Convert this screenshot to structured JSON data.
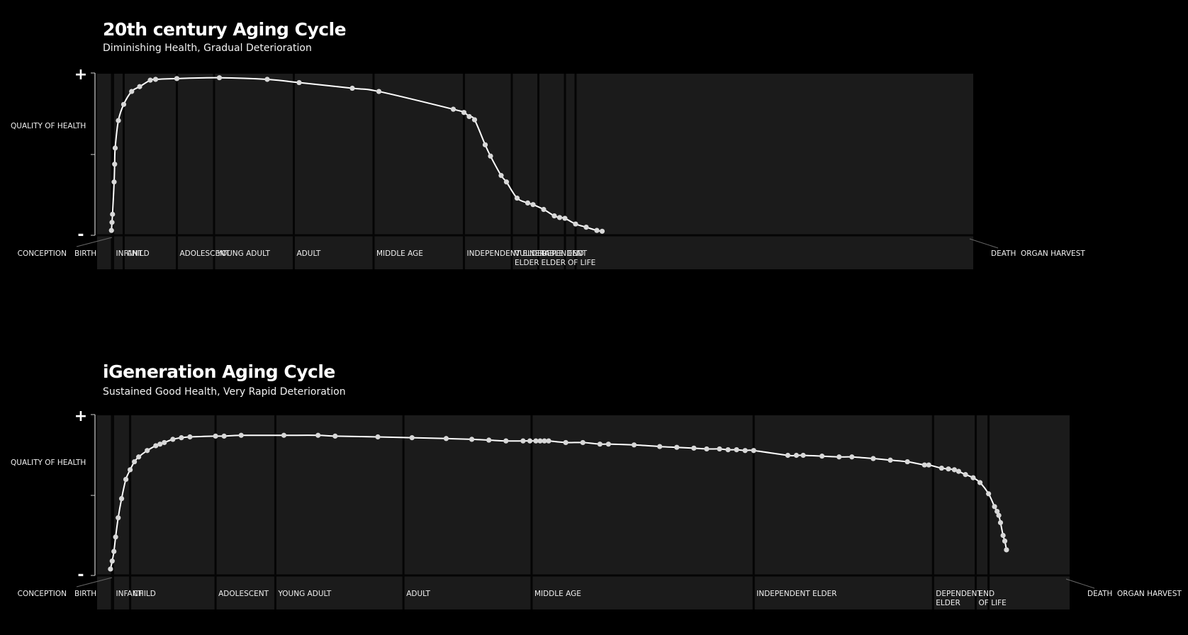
{
  "colors": {
    "background": "#000000",
    "panel": "#1b1b1b",
    "divider": "#050505",
    "curve": "#ffffff",
    "point": "#d8d8d8"
  },
  "chart_data": [
    {
      "type": "line",
      "title": "20th century Aging Cycle",
      "subtitle": "Diminishing Health, Gradual Deterioration",
      "ylabel": "QUALITY OF HEALTH",
      "y_max_label": "+",
      "y_min_label": "-",
      "ylim": [
        0,
        100
      ],
      "left_labels": [
        "CONCEPTION",
        "BIRTH"
      ],
      "right_labels": [
        "DEATH",
        "ORGAN HARVEST"
      ],
      "stages": [
        {
          "label": "INFANT",
          "label2": "",
          "start": 0,
          "end": 2
        },
        {
          "label": "CHILD",
          "label2": "",
          "start": 2,
          "end": 12
        },
        {
          "label": "ADOLESCENT",
          "label2": "",
          "start": 12,
          "end": 19
        },
        {
          "label": "YOUNG ADULT",
          "label2": "",
          "start": 19,
          "end": 34
        },
        {
          "label": "ADULT",
          "label2": "",
          "start": 34,
          "end": 49
        },
        {
          "label": "MIDDLE AGE",
          "label2": "",
          "start": 49,
          "end": 66
        },
        {
          "label": "INDEPENDENT ELDER",
          "label2": "",
          "start": 66,
          "end": 75
        },
        {
          "label": "VULNERABLE",
          "label2": "ELDER",
          "start": 75,
          "end": 80
        },
        {
          "label": "DEPENDENT",
          "label2": "ELDER",
          "start": 80,
          "end": 85
        },
        {
          "label": "END",
          "label2": "OF LIFE",
          "start": 85,
          "end": 87
        }
      ],
      "points": [
        [
          -0.3,
          3
        ],
        [
          -0.2,
          8
        ],
        [
          -0.1,
          13
        ],
        [
          0.2,
          33
        ],
        [
          0.3,
          44
        ],
        [
          0.4,
          54
        ],
        [
          1,
          71
        ],
        [
          2,
          81
        ],
        [
          3.5,
          89
        ],
        [
          5,
          92
        ],
        [
          7,
          96
        ],
        [
          8,
          96.5
        ],
        [
          12,
          97
        ],
        [
          20,
          97.5
        ],
        [
          29,
          96.5
        ],
        [
          35,
          94.5
        ],
        [
          45,
          91
        ],
        [
          50,
          89
        ],
        [
          64,
          78
        ],
        [
          66,
          76
        ],
        [
          67,
          73.5
        ],
        [
          68,
          71.5
        ],
        [
          70,
          56
        ],
        [
          71,
          49
        ],
        [
          73,
          37
        ],
        [
          74,
          33
        ],
        [
          76,
          23
        ],
        [
          78,
          20
        ],
        [
          79,
          19
        ],
        [
          81,
          16
        ],
        [
          83,
          12
        ],
        [
          84,
          11
        ],
        [
          85,
          10.5
        ],
        [
          87,
          7
        ],
        [
          89,
          5
        ],
        [
          91,
          3
        ],
        [
          92,
          2.5
        ]
      ]
    },
    {
      "type": "line",
      "title": "iGeneration Aging Cycle",
      "subtitle": "Sustained Good Health, Very Rapid Deterioration",
      "ylabel": "QUALITY OF HEALTH",
      "y_max_label": "+",
      "y_min_label": "-",
      "ylim": [
        0,
        100
      ],
      "left_labels": [
        "CONCEPTION",
        "BIRTH"
      ],
      "right_labels": [
        "DEATH",
        "ORGAN HARVEST"
      ],
      "stages": [
        {
          "label": "INFANT",
          "label2": "",
          "start": 0,
          "end": 2
        },
        {
          "label": "CHILD",
          "label2": "",
          "start": 2,
          "end": 12
        },
        {
          "label": "ADOLESCENT",
          "label2": "",
          "start": 12,
          "end": 19
        },
        {
          "label": "YOUNG ADULT",
          "label2": "",
          "start": 19,
          "end": 34
        },
        {
          "label": "ADULT",
          "label2": "",
          "start": 34,
          "end": 49
        },
        {
          "label": "MIDDLE AGE",
          "label2": "",
          "start": 49,
          "end": 75
        },
        {
          "label": "INDEPENDENT ELDER",
          "label2": "",
          "start": 75,
          "end": 96
        },
        {
          "label": "DEPENDENT",
          "label2": "ELDER",
          "start": 96,
          "end": 101
        },
        {
          "label": "END",
          "label2": "OF LIFE",
          "start": 101,
          "end": 102.5
        }
      ],
      "points": [
        [
          -0.3,
          4
        ],
        [
          -0.1,
          9
        ],
        [
          0.1,
          15
        ],
        [
          0.3,
          24
        ],
        [
          0.6,
          36
        ],
        [
          1,
          48
        ],
        [
          1.5,
          60
        ],
        [
          2,
          66
        ],
        [
          2.5,
          71
        ],
        [
          3,
          74
        ],
        [
          4,
          78
        ],
        [
          5,
          81
        ],
        [
          5.5,
          82
        ],
        [
          6,
          83
        ],
        [
          7,
          85
        ],
        [
          8,
          86
        ],
        [
          9,
          86.5
        ],
        [
          12,
          87
        ],
        [
          13,
          87
        ],
        [
          15,
          87.5
        ],
        [
          20,
          87.5
        ],
        [
          24,
          87.5
        ],
        [
          26,
          87
        ],
        [
          31,
          86.5
        ],
        [
          35,
          86
        ],
        [
          39,
          85.5
        ],
        [
          42,
          85
        ],
        [
          44,
          84.5
        ],
        [
          46,
          84
        ],
        [
          48,
          84
        ],
        [
          48.8,
          84
        ],
        [
          49.5,
          84
        ],
        [
          50,
          84
        ],
        [
          50.5,
          84
        ],
        [
          51,
          84
        ],
        [
          53,
          83
        ],
        [
          55,
          83
        ],
        [
          57,
          82
        ],
        [
          58,
          82
        ],
        [
          61,
          81.5
        ],
        [
          64,
          80.5
        ],
        [
          66,
          80
        ],
        [
          68,
          79.5
        ],
        [
          69.5,
          79
        ],
        [
          71,
          79
        ],
        [
          72,
          78.5
        ],
        [
          73,
          78.5
        ],
        [
          74,
          78
        ],
        [
          75,
          78
        ],
        [
          79,
          75
        ],
        [
          80,
          75
        ],
        [
          80.8,
          75
        ],
        [
          83,
          74.5
        ],
        [
          85,
          74
        ],
        [
          86.5,
          74
        ],
        [
          89,
          73
        ],
        [
          91,
          72
        ],
        [
          93,
          71
        ],
        [
          95,
          69
        ],
        [
          95.5,
          69
        ],
        [
          97,
          67
        ],
        [
          97.8,
          66.5
        ],
        [
          98.5,
          66
        ],
        [
          99,
          65
        ],
        [
          99.8,
          63
        ],
        [
          100.7,
          61
        ],
        [
          101.5,
          58
        ],
        [
          102.5,
          51
        ],
        [
          103.2,
          43
        ],
        [
          103.5,
          40
        ],
        [
          103.7,
          37.5
        ],
        [
          103.9,
          33
        ],
        [
          104.2,
          25
        ],
        [
          104.4,
          21.5
        ],
        [
          104.6,
          16
        ]
      ]
    }
  ]
}
